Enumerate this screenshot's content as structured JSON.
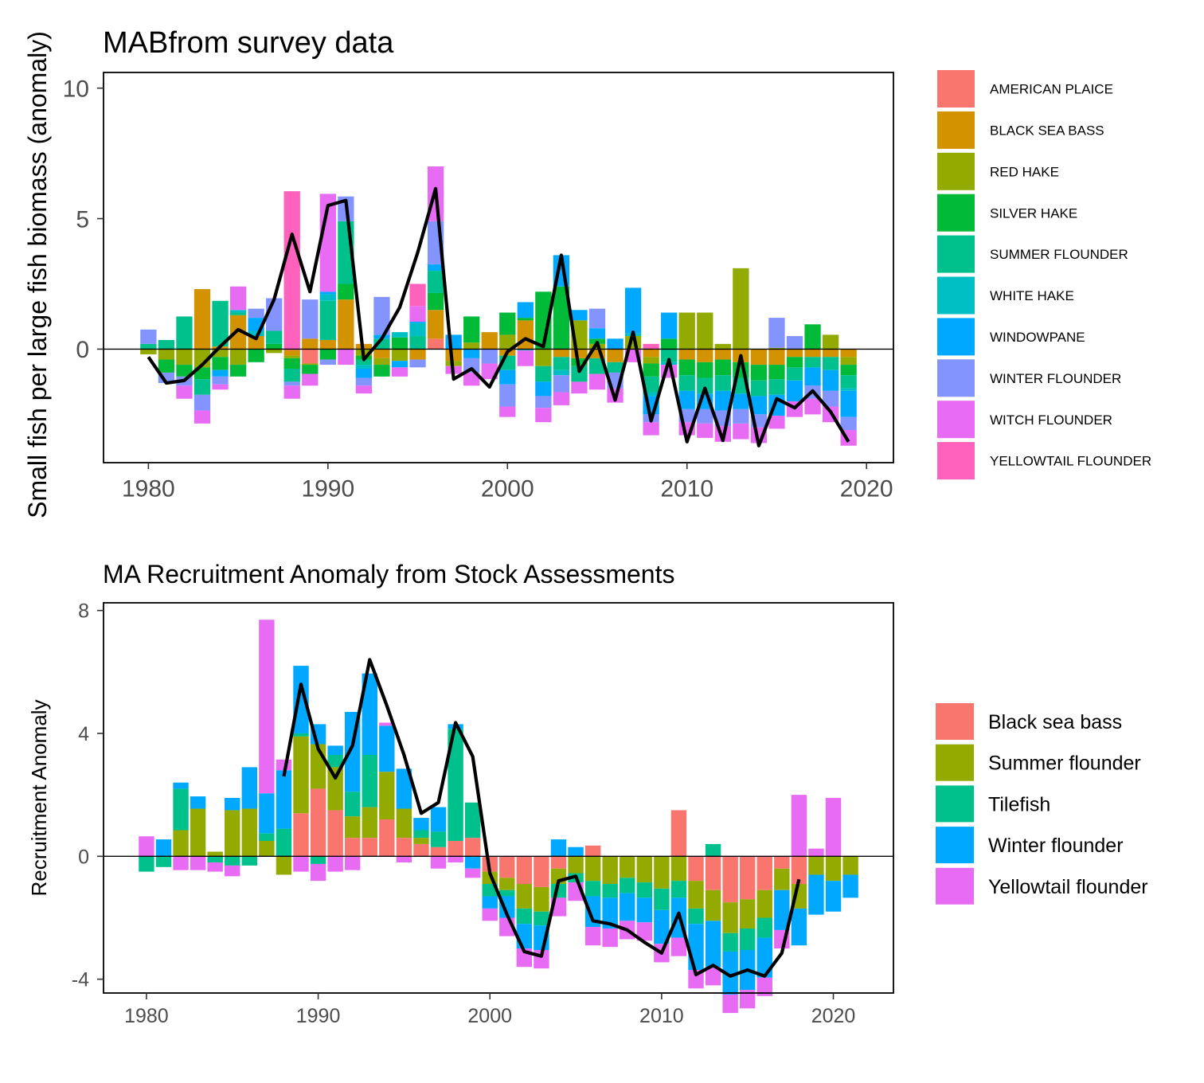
{
  "chart_data": [
    {
      "type": "bar",
      "stacked": true,
      "title": "MABfrom survey data",
      "xlabel": "",
      "ylabel": "Small fish per large fish biomass (anomaly)",
      "xlim": [
        1977.5,
        2021.5
      ],
      "ylim": [
        -4.35,
        10.6
      ],
      "x_ticks": [
        1980,
        1990,
        2000,
        2010,
        2020
      ],
      "y_ticks": [
        0,
        5,
        10
      ],
      "grid": false,
      "legend_position": "right",
      "years": [
        1980,
        1981,
        1982,
        1983,
        1984,
        1985,
        1986,
        1987,
        1988,
        1989,
        1990,
        1991,
        1992,
        1993,
        1994,
        1995,
        1996,
        1997,
        1998,
        1999,
        2000,
        2001,
        2002,
        2003,
        2004,
        2005,
        2006,
        2007,
        2008,
        2009,
        2010,
        2011,
        2012,
        2013,
        2014,
        2015,
        2016,
        2017,
        2018,
        2019
      ],
      "series": [
        {
          "name": "AMERICAN PLAICE",
          "color": "#F8766D",
          "values": [
            0,
            0,
            0,
            0,
            0,
            0,
            0,
            0,
            -0.05,
            -0.55,
            0,
            0,
            0,
            0,
            0,
            0,
            0.4,
            0,
            0,
            0,
            0,
            0,
            0,
            0,
            0,
            0,
            0,
            0,
            0,
            0,
            0,
            0,
            0,
            0,
            0,
            0,
            0,
            0,
            0,
            0
          ]
        },
        {
          "name": "BLACK SEA BASS",
          "color": "#D39200",
          "values": [
            0,
            0,
            0,
            2.3,
            0.1,
            1.3,
            0.5,
            0,
            -0.2,
            0.4,
            0.35,
            1.9,
            0.2,
            -0.35,
            0,
            -0.4,
            1.1,
            -0.45,
            0,
            0.65,
            -0.25,
            1.1,
            0,
            -0.3,
            -0.35,
            -0.35,
            -0.5,
            0,
            -0.3,
            0,
            -0.4,
            -0.5,
            -0.4,
            -0.5,
            -0.6,
            -0.6,
            -0.3,
            -0.3,
            -0.3,
            -0.3
          ]
        },
        {
          "name": "RED HAKE",
          "color": "#93AA00",
          "values": [
            -0.2,
            -0.4,
            -0.6,
            -0.7,
            -0.3,
            -0.6,
            0,
            -0.15,
            -0.1,
            -0.05,
            0,
            0,
            -0.25,
            -0.25,
            -0.45,
            0,
            0,
            -0.2,
            0.25,
            0,
            0.55,
            0,
            -0.65,
            0,
            1.1,
            0.2,
            0,
            0.5,
            -0.25,
            0,
            1.4,
            1.4,
            0.2,
            3.1,
            0,
            0.05,
            0,
            0,
            0.55,
            -0.3
          ]
        },
        {
          "name": "SILVER HAKE",
          "color": "#00BA38",
          "values": [
            0,
            -0.5,
            -0.45,
            -0.45,
            -0.5,
            -0.45,
            -0.5,
            0.2,
            -0.4,
            -0.35,
            -0.4,
            0.6,
            -0.15,
            -0.45,
            0.45,
            0,
            0.65,
            0,
            1,
            0,
            0.85,
            0.1,
            2.2,
            2.4,
            -0.3,
            0.2,
            0,
            0,
            -0.5,
            0.4,
            -0.6,
            -0.6,
            -0.6,
            -0.6,
            -0.6,
            -0.55,
            -0.4,
            0.95,
            0,
            -0.4
          ]
        },
        {
          "name": "SUMMER FLOUNDER",
          "color": "#00C08B",
          "values": [
            0.2,
            0.35,
            1.25,
            -0.6,
            1.75,
            0.1,
            0,
            0.5,
            -0.5,
            0,
            1.5,
            2.4,
            -0.2,
            0.4,
            0,
            0.5,
            0.85,
            0,
            0,
            0,
            -0.55,
            0,
            -0.6,
            -0.5,
            -0.6,
            -0.6,
            -0.4,
            0,
            -0.6,
            -0.5,
            -0.6,
            -0.6,
            -0.6,
            -0.6,
            -0.6,
            -0.6,
            -0.5,
            -0.4,
            -0.5,
            -0.5
          ]
        },
        {
          "name": "WHITE HAKE",
          "color": "#00BFC4",
          "values": [
            0,
            0,
            0,
            0,
            0,
            0.1,
            0.2,
            0,
            0,
            0,
            0.25,
            0,
            -0.15,
            0,
            0.2,
            0.5,
            0,
            0,
            0,
            0,
            0,
            -0.05,
            0,
            -0.2,
            0,
            0,
            0,
            0.1,
            -0.15,
            -0.1,
            0,
            0,
            0,
            0,
            0,
            0,
            0,
            0,
            0,
            -0.1
          ]
        },
        {
          "name": "WINDOWPANE",
          "color": "#00A9FF",
          "values": [
            0,
            0,
            0,
            0,
            -0.25,
            0,
            0.5,
            0,
            0,
            0,
            0.1,
            0,
            -0.35,
            0.15,
            -0.25,
            0.05,
            0.25,
            0.55,
            -0.35,
            0,
            -0.55,
            0.6,
            -0.55,
            1.2,
            0.4,
            0.4,
            0.4,
            1.75,
            -0.7,
            1,
            -0.7,
            -0.6,
            -0.75,
            -0.6,
            -0.7,
            -0.8,
            -0.8,
            -0.7,
            -0.8,
            -1
          ]
        },
        {
          "name": "WINTER FLOUNDER",
          "color": "#8494FF",
          "values": [
            0.55,
            -0.4,
            -0.35,
            -0.6,
            -0.3,
            0,
            0.35,
            1.25,
            -0.15,
            1.5,
            -0.2,
            0.95,
            -0.3,
            1.45,
            0,
            -0.3,
            1.65,
            0,
            -0.55,
            -0.55,
            -0.85,
            0,
            -0.45,
            -0.65,
            0,
            0.75,
            -0.6,
            0,
            -0.3,
            0,
            -0.5,
            -0.55,
            -0.6,
            -0.55,
            -0.5,
            1.15,
            0.5,
            -0.5,
            -0.6,
            -0.5
          ]
        },
        {
          "name": "WITCH FLOUNDER",
          "color": "#E76BF3",
          "values": [
            0,
            0,
            -0.5,
            -0.5,
            -0.2,
            0.9,
            0,
            0,
            -0.5,
            -0.45,
            3.75,
            -0.6,
            -0.3,
            0,
            -0.35,
            0.6,
            2.1,
            -0.3,
            -0.5,
            -0.6,
            -0.4,
            -0.6,
            -0.55,
            -0.5,
            -0.45,
            -0.6,
            -0.55,
            -0.5,
            -0.5,
            -0.5,
            -0.5,
            -0.55,
            -0.6,
            -0.6,
            -0.6,
            -0.5,
            -0.6,
            -0.6,
            -0.6,
            -0.6
          ]
        },
        {
          "name": "YELLOWTAIL FLOUNDER",
          "color": "#FF62BC",
          "values": [
            0,
            0,
            0,
            0,
            0,
            0,
            0,
            0,
            6.05,
            0,
            0,
            0,
            0,
            0,
            0,
            0.85,
            0,
            0,
            0,
            0,
            0,
            0,
            0,
            0,
            0,
            0,
            0,
            0,
            0.2,
            0,
            0,
            0,
            0,
            0,
            0,
            0,
            0,
            0,
            0,
            0
          ]
        }
      ],
      "line": [
        -0.3,
        -1.3,
        -1.2,
        -0.6,
        0.1,
        0.75,
        0.4,
        1.9,
        4.4,
        2.2,
        5.5,
        5.7,
        -0.4,
        0.4,
        1.6,
        3.7,
        6.15,
        -1.15,
        -0.75,
        -1.45,
        -0.1,
        0.4,
        0.1,
        3.6,
        -0.85,
        0.25,
        -1.95,
        0.65,
        -2.75,
        -0.4,
        -3.55,
        -1.5,
        -3.5,
        -0.25,
        -3.7,
        -1.9,
        -2.25,
        -1.6,
        -2.4,
        -3.55
      ]
    },
    {
      "type": "bar",
      "stacked": true,
      "title": "MA Recruitment Anomaly from Stock Assessments",
      "xlabel": "",
      "ylabel": "Recruitment Anomaly",
      "xlim": [
        1977.5,
        2023.5
      ],
      "ylim": [
        -4.45,
        8.25
      ],
      "x_ticks": [
        1980,
        1990,
        2000,
        2010,
        2020
      ],
      "y_ticks": [
        -4,
        0,
        4,
        8
      ],
      "grid": false,
      "legend_position": "right",
      "years": [
        1980,
        1981,
        1982,
        1983,
        1984,
        1985,
        1986,
        1987,
        1988,
        1989,
        1990,
        1991,
        1992,
        1993,
        1994,
        1995,
        1996,
        1997,
        1998,
        1999,
        2000,
        2001,
        2002,
        2003,
        2004,
        2005,
        2006,
        2007,
        2008,
        2009,
        2010,
        2011,
        2012,
        2013,
        2014,
        2015,
        2016,
        2017,
        2018,
        2019,
        2020,
        2021
      ],
      "series": [
        {
          "name": "Black sea bass",
          "color": "#F8766D",
          "values": [
            0,
            0,
            0,
            0,
            0,
            0,
            0,
            0,
            0,
            1.4,
            2.2,
            1.5,
            0.6,
            0.6,
            1.2,
            0.6,
            0.4,
            0.3,
            0.5,
            0.6,
            -0.5,
            -0.7,
            -0.9,
            -1,
            -0.4,
            0,
            0.35,
            0,
            0,
            0,
            0,
            1.5,
            -0.8,
            -1.1,
            -1.5,
            -1.4,
            -1.1,
            -0.4,
            -0.9,
            0,
            0,
            0
          ]
        },
        {
          "name": "Summer flounder",
          "color": "#93AA00",
          "values": [
            0,
            0,
            0.85,
            1.55,
            0.15,
            1.5,
            1.55,
            0.5,
            -0.6,
            2.5,
            1.45,
            1.4,
            0.7,
            1,
            1.55,
            0.95,
            0.2,
            0,
            0,
            0,
            -0.4,
            -0.4,
            -0.8,
            -0.8,
            -0.5,
            -0.55,
            -0.8,
            -0.9,
            -0.7,
            -0.85,
            -1.05,
            -0.8,
            -0.9,
            -1,
            -1,
            -0.95,
            -0.9,
            -0.7,
            -0.8,
            -0.6,
            -0.8,
            -0.6
          ]
        },
        {
          "name": "Tilefish",
          "color": "#00C08B",
          "values": [
            -0.5,
            -0.35,
            1.35,
            0,
            -0.2,
            -0.3,
            -0.3,
            0.25,
            0.9,
            0.1,
            -0.25,
            0.4,
            0.8,
            1.7,
            0,
            0,
            0.25,
            0.5,
            3.65,
            1.15,
            -0.4,
            -0.2,
            -0.5,
            -0.45,
            -0.45,
            -0.3,
            -0.5,
            -0.45,
            -0.5,
            -0.5,
            -0.7,
            -0.55,
            -0.5,
            0.4,
            -0.6,
            -0.7,
            -0.65,
            0,
            0,
            0,
            0,
            0
          ]
        },
        {
          "name": "Winter flounder",
          "color": "#00A9FF",
          "values": [
            0,
            0.55,
            0.2,
            0.4,
            0,
            0.4,
            1.35,
            1.3,
            1.9,
            2.2,
            0.65,
            0.3,
            2.6,
            2.65,
            1.5,
            1.3,
            0.4,
            0.8,
            0.15,
            -0.4,
            -0.4,
            -0.7,
            -0.8,
            -0.8,
            0.55,
            0.3,
            -1,
            -1,
            -0.9,
            -0.8,
            -1.1,
            -1.3,
            -1.5,
            -1.5,
            -1.4,
            -1.3,
            -1.3,
            -1.3,
            -1.2,
            -1.3,
            -1,
            -0.75
          ]
        },
        {
          "name": "Yellowtail flounder",
          "color": "#E76BF3",
          "values": [
            0.65,
            0,
            -0.45,
            -0.45,
            -0.3,
            -0.35,
            0,
            5.65,
            0.35,
            -0.5,
            -0.55,
            -0.5,
            -0.45,
            0,
            0.1,
            -0.2,
            0,
            -0.4,
            -0.2,
            -0.3,
            -0.4,
            -0.6,
            -0.6,
            -0.6,
            -0.6,
            -0.6,
            -0.6,
            -0.6,
            -0.6,
            -0.6,
            -0.6,
            -0.6,
            -0.6,
            -0.6,
            -0.6,
            -0.6,
            -0.6,
            -0.6,
            2,
            0.25,
            1.9,
            0
          ]
        }
      ],
      "line_years": [
        1988,
        1989,
        1990,
        1991,
        1992,
        1993,
        1994,
        1995,
        1996,
        1997,
        1998,
        1999,
        2000,
        2001,
        2002,
        2003,
        2004,
        2005,
        2006,
        2007,
        2008,
        2009,
        2010,
        2011,
        2012,
        2013,
        2014,
        2015,
        2016,
        2017,
        2018
      ],
      "line": [
        2.6,
        5.6,
        3.5,
        2.55,
        3.6,
        6.4,
        4.9,
        3.3,
        1.4,
        1.75,
        4.35,
        3.25,
        -0.55,
        -1.9,
        -3.1,
        -3.25,
        -0.8,
        -0.65,
        -2.1,
        -2.2,
        -2.4,
        -2.8,
        -3.15,
        -1.85,
        -3.85,
        -3.55,
        -3.9,
        -3.7,
        -3.9,
        -3.15,
        -0.75
      ]
    }
  ]
}
